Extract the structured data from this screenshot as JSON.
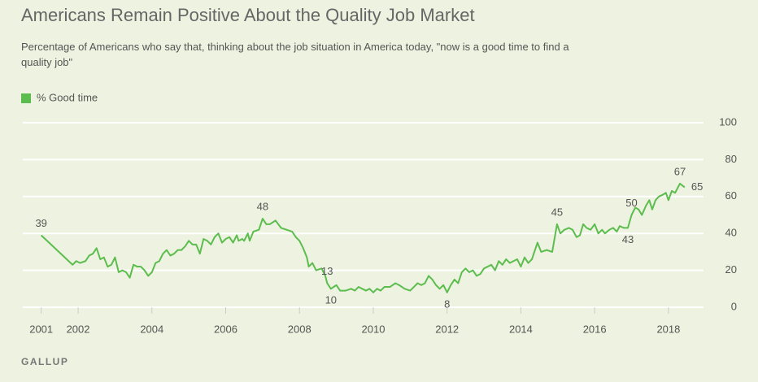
{
  "chart_data": {
    "type": "line",
    "title": "Americans Remain Positive About the Quality Job Market",
    "subtitle": "Percentage of Americans who say that, thinking about the job situation in America today, \"now is a good time to find a quality job\"",
    "source": "GALLUP",
    "legend": "top-left",
    "grid": true,
    "xlim": [
      2000.5,
      2018.95
    ],
    "xticks": [
      2001,
      2002,
      2004,
      2006,
      2008,
      2010,
      2012,
      2014,
      2016,
      2018
    ],
    "ylim": [
      0,
      100
    ],
    "yticks": [
      0,
      20,
      40,
      60,
      80,
      100
    ],
    "x": [
      2001.0,
      2001.85,
      2001.95,
      2002.05,
      2002.2,
      2002.3,
      2002.4,
      2002.5,
      2002.6,
      2002.7,
      2002.8,
      2002.9,
      2003.0,
      2003.1,
      2003.2,
      2003.3,
      2003.4,
      2003.5,
      2003.6,
      2003.7,
      2003.8,
      2003.9,
      2004.0,
      2004.1,
      2004.2,
      2004.3,
      2004.4,
      2004.5,
      2004.6,
      2004.7,
      2004.8,
      2004.9,
      2005.0,
      2005.1,
      2005.2,
      2005.3,
      2005.4,
      2005.5,
      2005.6,
      2005.7,
      2005.8,
      2005.9,
      2006.0,
      2006.1,
      2006.2,
      2006.3,
      2006.35,
      2006.45,
      2006.5,
      2006.6,
      2006.65,
      2006.75,
      2006.9,
      2007.0,
      2007.1,
      2007.2,
      2007.35,
      2007.5,
      2007.65,
      2007.8,
      2007.9,
      2008.0,
      2008.1,
      2008.2,
      2008.25,
      2008.35,
      2008.45,
      2008.6,
      2008.7,
      2008.75,
      2008.85,
      2009.0,
      2009.1,
      2009.25,
      2009.4,
      2009.5,
      2009.6,
      2009.7,
      2009.8,
      2009.9,
      2010.0,
      2010.1,
      2010.2,
      2010.3,
      2010.45,
      2010.6,
      2010.7,
      2010.85,
      2011.0,
      2011.1,
      2011.2,
      2011.3,
      2011.4,
      2011.5,
      2011.6,
      2011.7,
      2011.8,
      2011.9,
      2012.0,
      2012.1,
      2012.2,
      2012.3,
      2012.4,
      2012.5,
      2012.6,
      2012.7,
      2012.8,
      2012.9,
      2013.0,
      2013.2,
      2013.3,
      2013.4,
      2013.5,
      2013.6,
      2013.7,
      2013.8,
      2013.9,
      2014.0,
      2014.1,
      2014.2,
      2014.3,
      2014.45,
      2014.55,
      2014.7,
      2014.85,
      2014.98,
      2015.07,
      2015.18,
      2015.3,
      2015.4,
      2015.51,
      2015.6,
      2015.69,
      2015.78,
      2015.89,
      2016.0,
      2016.1,
      2016.2,
      2016.28,
      2016.4,
      2016.5,
      2016.6,
      2016.68,
      2016.79,
      2016.9,
      2017.0,
      2017.1,
      2017.19,
      2017.28,
      2017.39,
      2017.48,
      2017.56,
      2017.65,
      2017.74,
      2017.85,
      2017.93,
      2018.0,
      2018.09,
      2018.18,
      2018.31,
      2018.44
    ],
    "series": [
      {
        "name": "% Good time",
        "color": "#5cbd4e",
        "values": [
          39,
          23,
          25,
          24,
          25,
          28,
          29,
          32,
          26,
          27,
          22,
          23,
          27,
          19,
          20,
          19,
          16,
          23,
          22,
          22,
          20,
          17,
          19,
          24,
          25,
          29,
          31,
          28,
          29,
          31,
          31,
          33,
          36,
          34,
          34,
          29,
          37,
          36,
          34,
          38,
          40,
          35,
          37,
          38,
          35,
          39,
          36,
          37,
          36,
          40,
          36,
          41,
          42,
          48,
          45,
          45,
          47,
          43,
          42,
          41,
          38,
          36,
          32,
          27,
          22,
          24,
          20,
          21,
          17,
          13,
          10,
          12,
          9,
          9,
          10,
          9,
          11,
          10,
          9,
          10,
          8,
          10,
          9,
          11,
          11,
          13,
          12,
          10,
          9,
          11,
          13,
          12,
          13,
          17,
          15,
          12,
          10,
          12,
          8,
          12,
          15,
          13,
          19,
          21,
          19,
          20,
          17,
          18,
          21,
          23,
          20,
          25,
          23,
          26,
          24,
          25,
          26,
          22,
          27,
          24,
          26,
          35,
          30,
          31,
          30,
          45,
          40,
          42,
          43,
          42,
          38,
          39,
          45,
          43,
          42,
          45,
          40,
          42,
          40,
          42,
          43,
          41,
          44,
          43,
          43,
          50,
          54,
          53,
          50,
          55,
          58,
          53,
          58,
          60,
          61,
          62,
          58,
          63,
          62,
          67,
          65
        ]
      }
    ],
    "annotations": [
      {
        "x": 2001.0,
        "value": 39,
        "position": "above"
      },
      {
        "x": 2007.0,
        "value": 48,
        "position": "above"
      },
      {
        "x": 2008.75,
        "value": 13,
        "position": "above"
      },
      {
        "x": 2008.85,
        "value": 10,
        "position": "below"
      },
      {
        "x": 2012.0,
        "value": 8,
        "position": "below"
      },
      {
        "x": 2014.98,
        "value": 45,
        "position": "above"
      },
      {
        "x": 2017.0,
        "value": 50,
        "position": "above"
      },
      {
        "x": 2016.9,
        "value": 43,
        "position": "below"
      },
      {
        "x": 2018.31,
        "value": 67,
        "position": "above"
      },
      {
        "x": 2018.44,
        "value": 65,
        "position": "right"
      }
    ]
  }
}
